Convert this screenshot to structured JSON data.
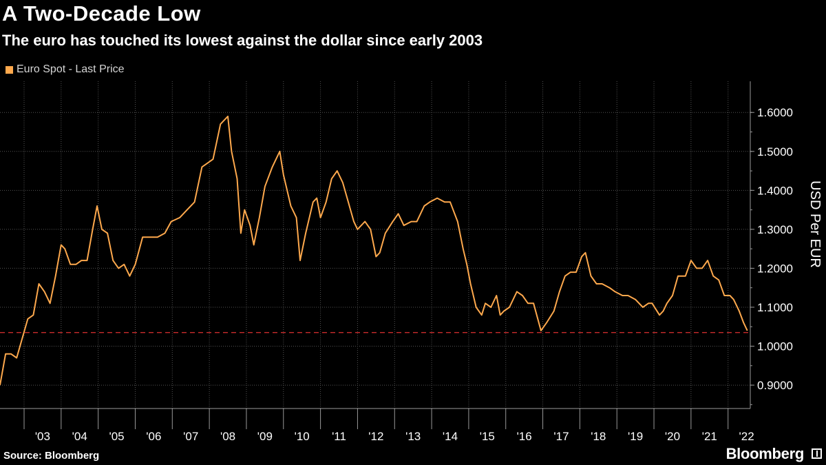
{
  "title": "A Two-Decade Low",
  "subtitle": "The euro has touched its lowest against the dollar since early 2003",
  "source": "Source: Bloomberg",
  "brand": "Bloomberg",
  "colors": {
    "series": "#ffa94d",
    "reference_line": "#e03030",
    "grid": "#555555",
    "background": "#000000"
  },
  "chart_data": {
    "type": "line",
    "ylabel": "USD Per EUR",
    "y_axis_position": "right",
    "ylim": [
      0.84,
      1.68
    ],
    "yticks": [
      0.9,
      1.0,
      1.1,
      1.2,
      1.3,
      1.4,
      1.5,
      1.6
    ],
    "ytick_labels": [
      "0.9000",
      "1.0000",
      "1.1000",
      "1.2000",
      "1.3000",
      "1.4000",
      "1.5000",
      "1.6000"
    ],
    "xlim": [
      2002.35,
      2022.6
    ],
    "xtick_labels": [
      "'03",
      "'04",
      "'05",
      "'06",
      "'07",
      "'08",
      "'09",
      "'10",
      "'11",
      "'12",
      "'13",
      "'14",
      "'15",
      "'16",
      "'17",
      "'18",
      "'19",
      "'20",
      "'21",
      "'22"
    ],
    "xtick_years": [
      2003,
      2004,
      2005,
      2006,
      2007,
      2008,
      2009,
      2010,
      2011,
      2012,
      2013,
      2014,
      2015,
      2016,
      2017,
      2018,
      2019,
      2020,
      2021,
      2022
    ],
    "grid": true,
    "legend_position": "top-left",
    "reference_line": {
      "y": 1.035,
      "style": "dashed"
    },
    "series": [
      {
        "name": "Euro Spot - Last Price",
        "x": [
          2002.35,
          2002.5,
          2002.65,
          2002.8,
          2002.95,
          2003.1,
          2003.25,
          2003.4,
          2003.55,
          2003.7,
          2003.85,
          2004.0,
          2004.1,
          2004.25,
          2004.4,
          2004.55,
          2004.7,
          2004.85,
          2004.97,
          2005.1,
          2005.25,
          2005.4,
          2005.55,
          2005.7,
          2005.85,
          2006.0,
          2006.2,
          2006.4,
          2006.6,
          2006.8,
          2006.97,
          2007.2,
          2007.4,
          2007.6,
          2007.8,
          2007.95,
          2008.1,
          2008.3,
          2008.5,
          2008.6,
          2008.75,
          2008.85,
          2008.95,
          2009.1,
          2009.2,
          2009.35,
          2009.5,
          2009.7,
          2009.9,
          2010.0,
          2010.2,
          2010.35,
          2010.45,
          2010.6,
          2010.8,
          2010.9,
          2011.0,
          2011.15,
          2011.3,
          2011.45,
          2011.6,
          2011.75,
          2011.9,
          2012.0,
          2012.2,
          2012.35,
          2012.5,
          2012.6,
          2012.75,
          2012.95,
          2013.1,
          2013.25,
          2013.45,
          2013.6,
          2013.8,
          2013.95,
          2014.15,
          2014.35,
          2014.5,
          2014.7,
          2014.85,
          2014.95,
          2015.05,
          2015.2,
          2015.35,
          2015.45,
          2015.6,
          2015.75,
          2015.85,
          2015.95,
          2016.1,
          2016.3,
          2016.45,
          2016.6,
          2016.75,
          2016.95,
          2017.1,
          2017.3,
          2017.45,
          2017.6,
          2017.75,
          2017.9,
          2018.05,
          2018.15,
          2018.3,
          2018.45,
          2018.6,
          2018.8,
          2018.95,
          2019.15,
          2019.3,
          2019.5,
          2019.7,
          2019.85,
          2019.95,
          2020.15,
          2020.25,
          2020.35,
          2020.5,
          2020.65,
          2020.85,
          2021.0,
          2021.15,
          2021.3,
          2021.45,
          2021.6,
          2021.75,
          2021.9,
          2022.05,
          2022.15,
          2022.3,
          2022.42,
          2022.52
        ],
        "values": [
          0.9,
          0.98,
          0.98,
          0.97,
          1.02,
          1.07,
          1.08,
          1.16,
          1.14,
          1.11,
          1.18,
          1.26,
          1.25,
          1.21,
          1.21,
          1.22,
          1.22,
          1.3,
          1.36,
          1.3,
          1.29,
          1.22,
          1.2,
          1.21,
          1.18,
          1.21,
          1.28,
          1.28,
          1.28,
          1.29,
          1.32,
          1.33,
          1.35,
          1.37,
          1.46,
          1.47,
          1.48,
          1.57,
          1.59,
          1.5,
          1.43,
          1.29,
          1.35,
          1.31,
          1.26,
          1.33,
          1.41,
          1.46,
          1.5,
          1.44,
          1.36,
          1.33,
          1.22,
          1.29,
          1.37,
          1.38,
          1.33,
          1.37,
          1.43,
          1.45,
          1.42,
          1.37,
          1.32,
          1.3,
          1.32,
          1.3,
          1.23,
          1.24,
          1.29,
          1.32,
          1.34,
          1.31,
          1.32,
          1.32,
          1.36,
          1.37,
          1.38,
          1.37,
          1.37,
          1.32,
          1.25,
          1.21,
          1.16,
          1.1,
          1.08,
          1.11,
          1.1,
          1.13,
          1.08,
          1.09,
          1.1,
          1.14,
          1.13,
          1.11,
          1.11,
          1.04,
          1.06,
          1.09,
          1.14,
          1.18,
          1.19,
          1.19,
          1.23,
          1.24,
          1.18,
          1.16,
          1.16,
          1.15,
          1.14,
          1.13,
          1.13,
          1.12,
          1.1,
          1.11,
          1.11,
          1.08,
          1.09,
          1.11,
          1.13,
          1.18,
          1.18,
          1.22,
          1.2,
          1.2,
          1.22,
          1.18,
          1.17,
          1.13,
          1.13,
          1.12,
          1.09,
          1.06,
          1.04
        ]
      }
    ]
  }
}
